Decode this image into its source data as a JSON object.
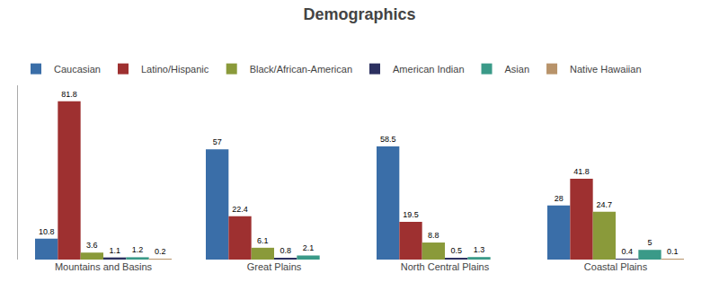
{
  "chart_data": {
    "type": "bar",
    "title": "Demographics",
    "categories": [
      "Mountains and Basins",
      "Great Plains",
      "North Central Plains",
      "Coastal Plains"
    ],
    "series": [
      {
        "name": "Caucasian",
        "color": "#3a6ea8",
        "values": [
          10.8,
          57.0,
          58.5,
          28.0
        ]
      },
      {
        "name": "Latino/Hispanic",
        "color": "#9e3030",
        "values": [
          81.8,
          22.4,
          19.5,
          41.8
        ]
      },
      {
        "name": "Black/African-American",
        "color": "#8a9a3a",
        "values": [
          3.6,
          6.1,
          8.8,
          24.7
        ]
      },
      {
        "name": "American Indian",
        "color": "#2c3060",
        "values": [
          1.1,
          0.8,
          0.5,
          0.4
        ]
      },
      {
        "name": "Asian",
        "color": "#3a9a88",
        "values": [
          1.2,
          2.1,
          1.3,
          5.0
        ]
      },
      {
        "name": "Native Hawaiian",
        "color": "#b8936a",
        "values": [
          0.2,
          0.0,
          0.0,
          0.1
        ],
        "value_labels": [
          "0.2",
          null,
          null,
          "0.1"
        ]
      }
    ],
    "ylim": [
      0,
      90
    ],
    "grid": false,
    "legend": "upper left",
    "data_labels": true,
    "tick_labels": "x"
  }
}
